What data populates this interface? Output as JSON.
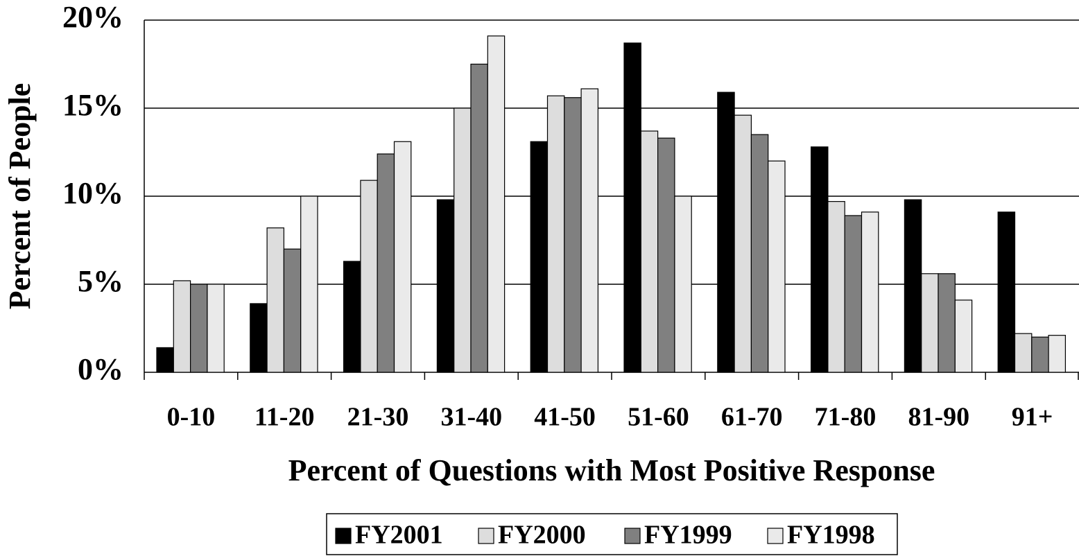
{
  "chart_data": {
    "type": "bar",
    "xlabel": "Percent of Questions with Most Positive Response",
    "ylabel": "Percent of People",
    "categories": [
      "0-10",
      "11-20",
      "21-30",
      "31-40",
      "41-50",
      "51-60",
      "61-70",
      "71-80",
      "81-90",
      "91+"
    ],
    "series": [
      {
        "name": "FY2001",
        "color": "#000000",
        "values": [
          1.4,
          3.9,
          6.3,
          9.8,
          13.1,
          18.7,
          15.9,
          12.8,
          9.8,
          9.1
        ]
      },
      {
        "name": "FY2000",
        "color": "#dddddd",
        "values": [
          5.2,
          8.2,
          10.9,
          15.0,
          15.7,
          13.7,
          14.6,
          9.7,
          5.6,
          2.2
        ]
      },
      {
        "name": "FY1999",
        "color": "#808080",
        "values": [
          5.0,
          7.0,
          12.4,
          17.5,
          15.6,
          13.3,
          13.5,
          8.9,
          5.6,
          2.0
        ]
      },
      {
        "name": "FY1998",
        "color": "#eaeaea",
        "values": [
          5.0,
          10.0,
          13.1,
          19.1,
          16.1,
          10.0,
          12.0,
          9.1,
          4.1,
          2.1
        ]
      }
    ],
    "ylim": [
      0,
      20
    ],
    "yticks": [
      {
        "value": 0,
        "label": "0%"
      },
      {
        "value": 5,
        "label": "5%"
      },
      {
        "value": 10,
        "label": "10%"
      },
      {
        "value": 15,
        "label": "15%"
      },
      {
        "value": 20,
        "label": "20%"
      }
    ],
    "grid": true,
    "legend": "bottom"
  }
}
